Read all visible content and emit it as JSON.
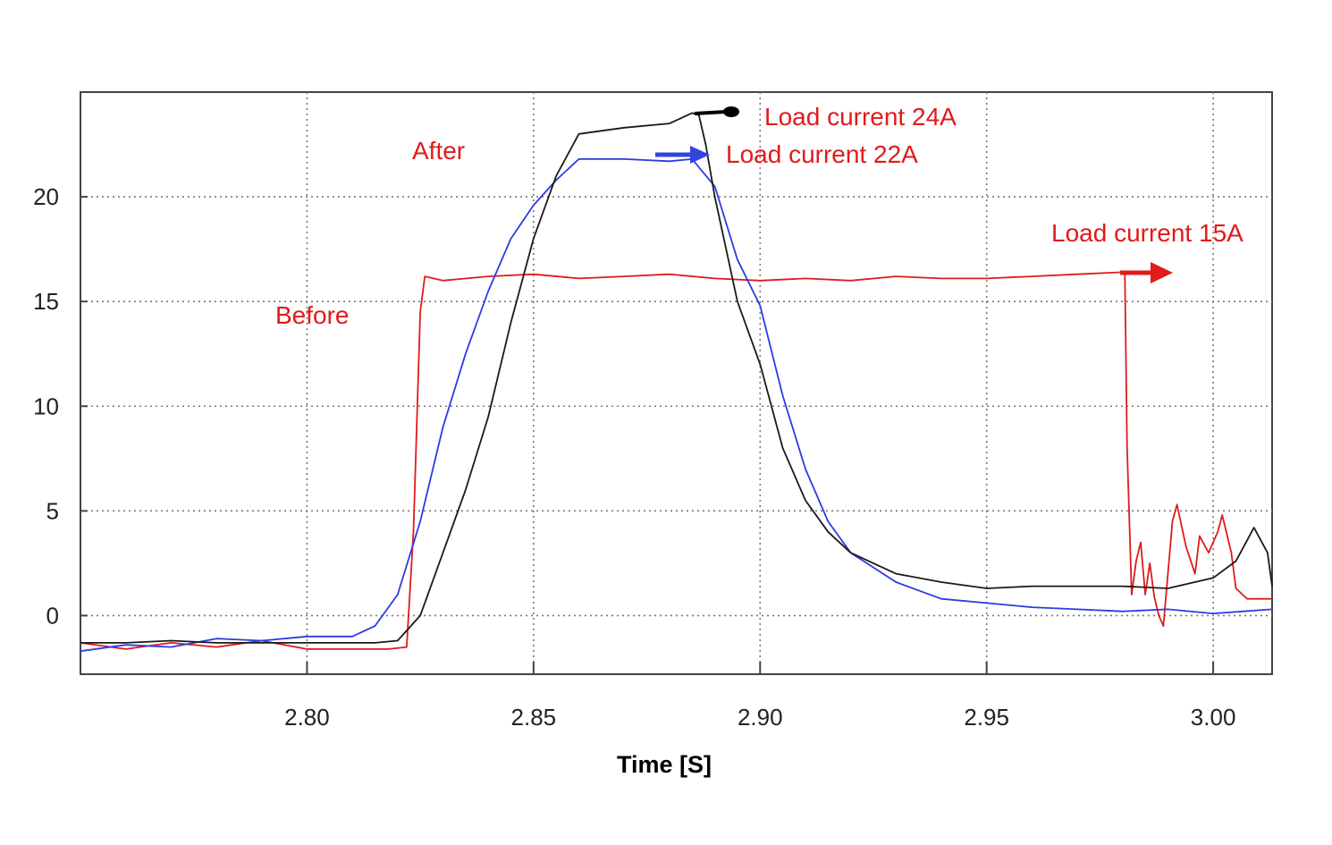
{
  "chart_data": {
    "type": "line",
    "xlabel": "Time [S]",
    "xlabel_parts": {
      "main": "Time ",
      "unit": "[S]"
    },
    "ylabel": "",
    "xlim": [
      2.75,
      3.013
    ],
    "ylim": [
      -2.8,
      25
    ],
    "x_ticks": [
      2.8,
      2.85,
      2.9,
      2.95,
      3.0
    ],
    "x_tick_labels": [
      "2.80",
      "2.85",
      "2.90",
      "2.95",
      "3.00"
    ],
    "y_ticks": [
      0,
      5,
      10,
      15,
      20
    ],
    "y_tick_labels": [
      "0",
      "5",
      "10",
      "15",
      "20"
    ],
    "grid": true,
    "series": [
      {
        "key": "red",
        "color": "#e11a1a",
        "x": [
          2.75,
          2.76,
          2.77,
          2.78,
          2.79,
          2.8,
          2.81,
          2.818,
          2.822,
          2.8235,
          2.825,
          2.826,
          2.83,
          2.84,
          2.85,
          2.86,
          2.87,
          2.88,
          2.89,
          2.9,
          2.91,
          2.92,
          2.93,
          2.94,
          2.95,
          2.96,
          2.97,
          2.98,
          2.9805,
          2.981,
          2.982,
          2.983,
          2.984,
          2.985,
          2.986,
          2.987,
          2.988,
          2.989,
          2.991,
          2.992,
          2.994,
          2.996,
          2.997,
          2.999,
          3.001,
          3.002,
          3.004,
          3.005,
          3.007,
          3.0075,
          3.013
        ],
        "y": [
          -1.3,
          -1.6,
          -1.3,
          -1.5,
          -1.2,
          -1.6,
          -1.6,
          -1.6,
          -1.5,
          4.0,
          14.5,
          16.2,
          16.0,
          16.2,
          16.3,
          16.1,
          16.2,
          16.3,
          16.1,
          16.0,
          16.1,
          16.0,
          16.2,
          16.1,
          16.1,
          16.2,
          16.3,
          16.4,
          16.3,
          8.0,
          1.0,
          2.6,
          3.5,
          1.0,
          2.5,
          0.9,
          0.0,
          -0.5,
          4.5,
          5.3,
          3.3,
          2.0,
          3.8,
          3.0,
          4.0,
          4.8,
          3.0,
          1.3,
          0.9,
          0.8,
          0.8
        ]
      },
      {
        "key": "blue",
        "color": "#2d3be0",
        "x": [
          2.75,
          2.76,
          2.77,
          2.78,
          2.79,
          2.8,
          2.81,
          2.815,
          2.82,
          2.825,
          2.83,
          2.835,
          2.84,
          2.845,
          2.85,
          2.855,
          2.86,
          2.87,
          2.88,
          2.885,
          2.89,
          2.895,
          2.9,
          2.905,
          2.91,
          2.915,
          2.92,
          2.93,
          2.94,
          2.95,
          2.96,
          2.97,
          2.98,
          2.99,
          3.0,
          3.013
        ],
        "y": [
          -1.7,
          -1.4,
          -1.5,
          -1.1,
          -1.2,
          -1.0,
          -1.0,
          -0.5,
          1.0,
          4.5,
          9.0,
          12.5,
          15.5,
          18.0,
          19.6,
          20.8,
          21.8,
          21.8,
          21.7,
          21.8,
          20.5,
          17.0,
          14.8,
          10.5,
          7.0,
          4.5,
          3.0,
          1.6,
          0.8,
          0.6,
          0.4,
          0.3,
          0.2,
          0.3,
          0.1,
          0.3
        ]
      },
      {
        "key": "black",
        "color": "#1a1a1a",
        "x": [
          2.75,
          2.76,
          2.77,
          2.78,
          2.79,
          2.8,
          2.81,
          2.815,
          2.82,
          2.825,
          2.83,
          2.835,
          2.84,
          2.845,
          2.85,
          2.855,
          2.86,
          2.87,
          2.88,
          2.885,
          2.8865,
          2.888,
          2.89,
          2.895,
          2.9,
          2.905,
          2.91,
          2.915,
          2.92,
          2.93,
          2.94,
          2.95,
          2.96,
          2.97,
          2.98,
          2.99,
          3.0,
          3.005,
          3.009,
          3.012,
          3.013
        ],
        "y": [
          -1.3,
          -1.3,
          -1.2,
          -1.3,
          -1.3,
          -1.3,
          -1.3,
          -1.3,
          -1.2,
          0.0,
          3.0,
          6.0,
          9.5,
          14.0,
          18.0,
          21.0,
          23.0,
          23.3,
          23.5,
          24.0,
          23.9,
          22.5,
          20.0,
          15.0,
          12.0,
          8.0,
          5.5,
          4.0,
          3.0,
          2.0,
          1.6,
          1.3,
          1.4,
          1.4,
          1.4,
          1.3,
          1.8,
          2.6,
          4.2,
          3.0,
          1.4
        ]
      }
    ],
    "annotations": [
      {
        "key": "a24",
        "text": "Load current 24A",
        "color": "#e11a1a",
        "arrow_color": "#000000"
      },
      {
        "key": "a22",
        "text": "Load current 22A",
        "color": "#e11a1a",
        "arrow_color": "#3344dd"
      },
      {
        "key": "a15",
        "text": "Load current 15A",
        "color": "#e11a1a",
        "arrow_color": "#e11a1a"
      },
      {
        "key": "after",
        "text": "After",
        "color": "#e11a1a"
      },
      {
        "key": "before",
        "text": "Before",
        "color": "#e11a1a"
      }
    ]
  }
}
